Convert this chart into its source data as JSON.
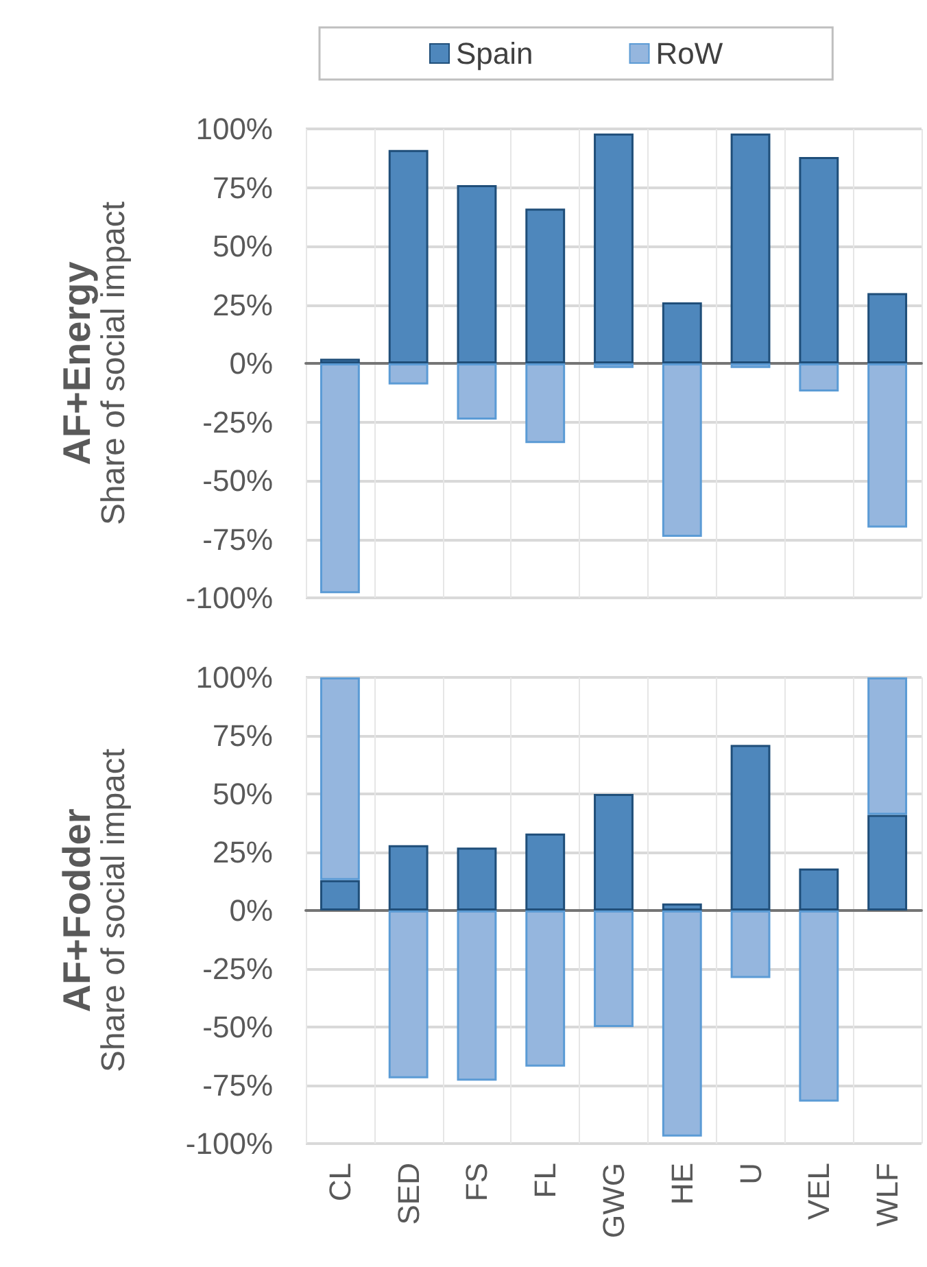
{
  "chart_data": [
    {
      "type": "bar",
      "title": "AF+Energy",
      "ylabel": "Share of social impact",
      "categories": [
        null,
        null,
        null,
        null,
        null,
        null,
        null,
        null,
        null
      ],
      "stacked": true,
      "series": [
        {
          "name": "Spain",
          "color": "#4e87bc",
          "values": [
            2,
            91,
            76,
            66,
            98,
            26,
            98,
            88,
            30
          ]
        },
        {
          "name": "RoW",
          "color": "#95b6de",
          "values": [
            -98,
            -9,
            -24,
            -34,
            -2,
            -74,
            -2,
            -12,
            -70
          ]
        }
      ],
      "ylim": [
        -100,
        100
      ],
      "yticks": [
        {
          "value": -100,
          "label": "-100%"
        },
        {
          "value": -75,
          "label": "-75%"
        },
        {
          "value": -50,
          "label": "-50%"
        },
        {
          "value": -25,
          "label": "-25%"
        },
        {
          "value": 0,
          "label": "0%"
        },
        {
          "value": 25,
          "label": "25%"
        },
        {
          "value": 50,
          "label": "50%"
        },
        {
          "value": 75,
          "label": "75%"
        },
        {
          "value": 100,
          "label": "100%"
        }
      ],
      "grid": true,
      "legend": "top",
      "tick_labels": "y"
    },
    {
      "type": "bar",
      "title": "AF+Fodder",
      "ylabel": "Share of social impact",
      "categories": [
        "CL",
        "SED",
        "FS",
        "FL",
        "GWG",
        "HE",
        "U",
        "VEL",
        "WLF"
      ],
      "stacked": true,
      "series": [
        {
          "color": "#4e87bc",
          "values": [
            13,
            28,
            27,
            33,
            50,
            3,
            71,
            18,
            41
          ]
        },
        {
          "color": "#95b6de",
          "values": [
            87,
            -72,
            -73,
            -67,
            -50,
            -97,
            -29,
            -82,
            59
          ]
        }
      ],
      "ylim": [
        -100,
        100
      ],
      "yticks": [
        {
          "value": -100,
          "label": "-100%"
        },
        {
          "value": -75,
          "label": "-75%"
        },
        {
          "value": -50,
          "label": "-50%"
        },
        {
          "value": -25,
          "label": "-25%"
        },
        {
          "value": 0,
          "label": "0%"
        },
        {
          "value": 25,
          "label": "25%"
        },
        {
          "value": 50,
          "label": "50%"
        },
        {
          "value": 75,
          "label": "75%"
        },
        {
          "value": 100,
          "label": "100%"
        }
      ],
      "grid": true
    }
  ]
}
